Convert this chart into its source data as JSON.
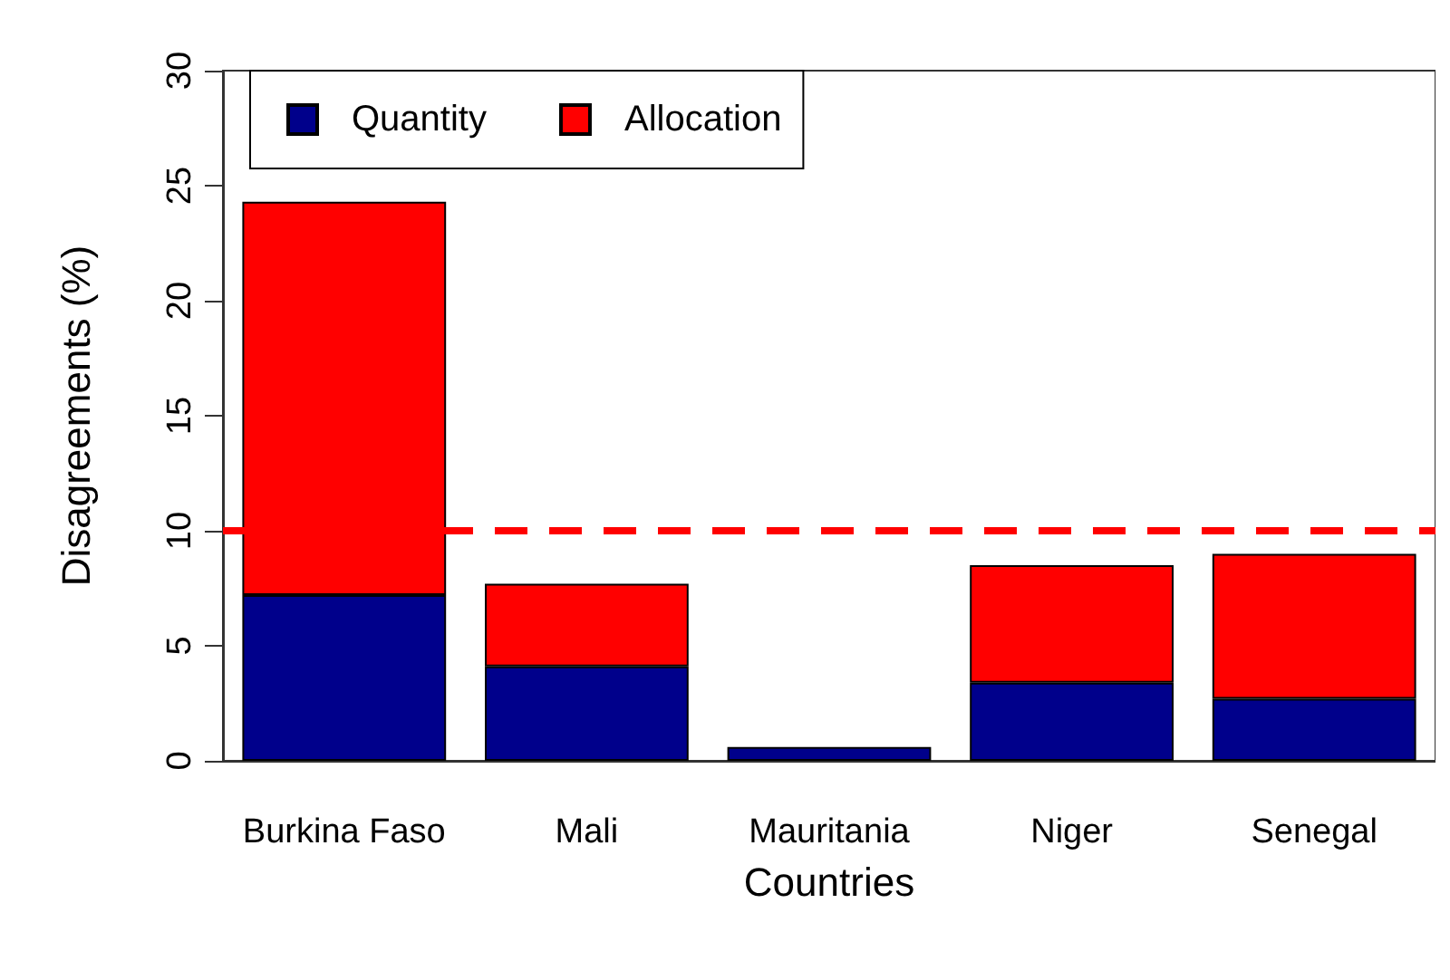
{
  "chart_data": {
    "type": "bar",
    "stacked": true,
    "xlabel": "Countries",
    "ylabel": "Disagreements (%)",
    "categories": [
      "Burkina Faso",
      "Mali",
      "Mauritania",
      "Niger",
      "Senegal"
    ],
    "series": [
      {
        "name": "Quantity",
        "color": "#00008b",
        "values": [
          7.2,
          4.1,
          0.6,
          3.4,
          2.7
        ]
      },
      {
        "name": "Allocation",
        "color": "#ff0000",
        "values": [
          17.1,
          3.6,
          0,
          5.1,
          6.3
        ]
      }
    ],
    "ylim": [
      0,
      30
    ],
    "yticks": [
      0,
      5,
      10,
      15,
      20,
      25,
      30
    ],
    "ref_lines": [
      {
        "axis": "y",
        "value": 10,
        "color": "#ff0000",
        "line_style": "dashed"
      }
    ],
    "legend": "top left",
    "grid": false
  }
}
